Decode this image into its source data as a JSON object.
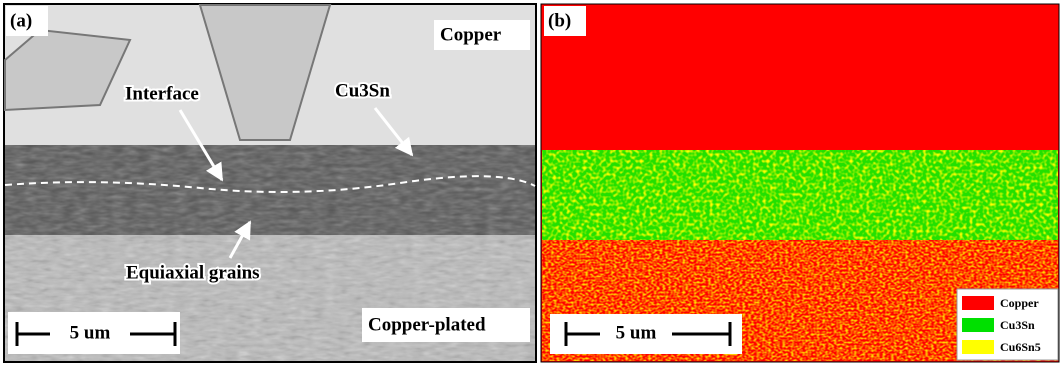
{
  "panel_a": {
    "label": "(a)",
    "copper": "Copper",
    "interface": "Interface",
    "cu3sn": "Cu3Sn",
    "equiaxial": "Equiaxial grains",
    "plated": "Copper-plated",
    "scale_bar": "5 um"
  },
  "panel_b": {
    "label": "(b)",
    "scale_bar": "5 um",
    "legend": [
      {
        "name": "Copper",
        "color": "#ff0000"
      },
      {
        "name": "Cu3Sn",
        "color": "#00e000"
      },
      {
        "name": "Cu6Sn5",
        "color": "#ffff00"
      }
    ]
  }
}
